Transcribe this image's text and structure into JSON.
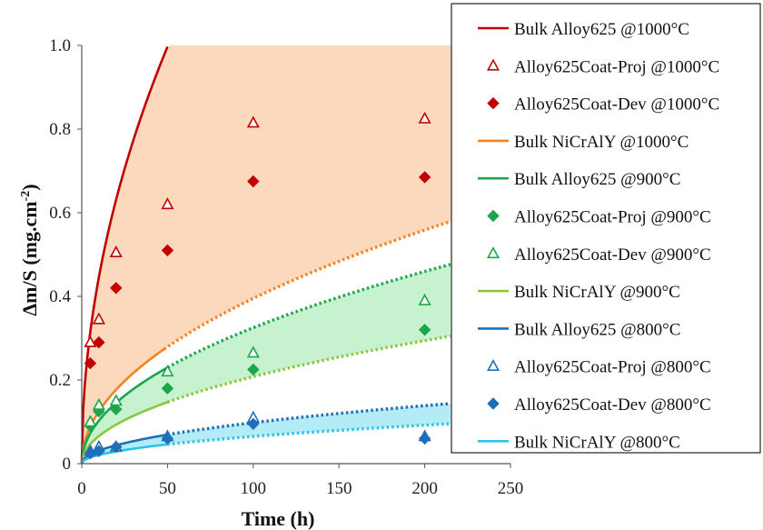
{
  "chart_data": {
    "type": "line",
    "xlabel": "Time (h)",
    "ylabel_main": "Δm/S (mg.cm",
    "ylabel_sup": "-2",
    "ylabel_end": ")",
    "xlim": [
      0,
      250
    ],
    "ylim": [
      0,
      1.0
    ],
    "xticks": [
      {
        "value": 0,
        "label": "0"
      },
      {
        "value": 50,
        "label": "50"
      },
      {
        "value": 100,
        "label": "100"
      },
      {
        "value": 150,
        "label": "150"
      },
      {
        "value": 200,
        "label": "200"
      },
      {
        "value": 250,
        "label": "250"
      }
    ],
    "yticks": [
      {
        "value": 0,
        "label": "0"
      },
      {
        "value": 0.2,
        "label": "0.2"
      },
      {
        "value": 0.4,
        "label": "0.4"
      },
      {
        "value": 0.6,
        "label": "0.6"
      },
      {
        "value": 0.8,
        "label": "0.8"
      },
      {
        "value": 1.0,
        "label": "1.0"
      }
    ],
    "grid": false,
    "legend_position": "right",
    "bands": [
      {
        "upper": "bulk-alloy625-1000",
        "lower": "bulk-nicraly-1000",
        "color": "#fcd9bc"
      },
      {
        "upper": "bulk-alloy625-900",
        "lower": "bulk-nicraly-900",
        "color": "#c6f2cf"
      },
      {
        "upper": "bulk-alloy625-800",
        "lower": "bulk-nicraly-800",
        "color": "#b3ecf6"
      }
    ],
    "series": [
      {
        "id": "bulk-alloy625-1000",
        "name": "Bulk Alloy625 @1000°C",
        "kind": "line",
        "color": "#c00000",
        "k": 0.141,
        "x_end": 50,
        "extrapolate_to": 0
      },
      {
        "id": "proj-1000",
        "name": "Alloy625Coat-Proj @1000°C",
        "kind": "marker",
        "marker": "triangle-open",
        "color": "#c00000",
        "x": [
          5,
          10,
          20,
          50,
          100,
          200
        ],
        "y": [
          0.29,
          0.345,
          0.505,
          0.62,
          0.815,
          0.825
        ]
      },
      {
        "id": "dev-1000",
        "name": "Alloy625Coat-Dev @1000°C",
        "kind": "marker",
        "marker": "diamond",
        "color": "#c00000",
        "x": [
          5,
          10,
          20,
          50,
          100,
          200
        ],
        "y": [
          0.24,
          0.29,
          0.42,
          0.51,
          0.675,
          0.685
        ]
      },
      {
        "id": "bulk-nicraly-1000",
        "name": "Bulk NiCrAlY @1000°C",
        "kind": "line",
        "color": "#f4821f",
        "k": 0.0395,
        "x_end": 48,
        "extrapolate_to": 215
      },
      {
        "id": "bulk-alloy625-900",
        "name": "Bulk Alloy625 @900°C",
        "kind": "line",
        "color": "#1aa64a",
        "k": 0.0325,
        "x_end": 50,
        "extrapolate_to": 215
      },
      {
        "id": "proj-900",
        "name": "Alloy625Coat-Proj @900°C",
        "kind": "marker",
        "marker": "diamond",
        "color": "#1aa64a",
        "x": [
          5,
          10,
          20,
          50,
          100,
          200
        ],
        "y": [
          0.09,
          0.125,
          0.13,
          0.18,
          0.225,
          0.32
        ]
      },
      {
        "id": "dev-900",
        "name": "Alloy625Coat-Dev @900°C",
        "kind": "marker",
        "marker": "triangle-open",
        "color": "#1aa64a",
        "x": [
          5,
          10,
          20,
          50,
          100,
          200
        ],
        "y": [
          0.1,
          0.14,
          0.15,
          0.22,
          0.265,
          0.39
        ]
      },
      {
        "id": "bulk-nicraly-900",
        "name": "Bulk NiCrAlY @900°C",
        "kind": "line",
        "color": "#8cc63f",
        "k": 0.0208,
        "x_end": 50,
        "extrapolate_to": 215
      },
      {
        "id": "bulk-alloy625-800",
        "name": "Bulk Alloy625 @800°C",
        "kind": "line",
        "color": "#1f6fb8",
        "k": 0.0098,
        "x_end": 50,
        "extrapolate_to": 215
      },
      {
        "id": "proj-800",
        "name": "Alloy625Coat-Proj @800°C",
        "kind": "marker",
        "marker": "triangle-open",
        "color": "#1f6fb8",
        "x": [
          5,
          10,
          20,
          50,
          100,
          200
        ],
        "y": [
          0.03,
          0.04,
          0.04,
          0.065,
          0.11,
          0.065
        ]
      },
      {
        "id": "dev-800",
        "name": "Alloy625Coat-Dev @800°C",
        "kind": "marker",
        "marker": "diamond",
        "color": "#1f6fb8",
        "x": [
          5,
          10,
          20,
          50,
          100,
          200
        ],
        "y": [
          0.025,
          0.03,
          0.04,
          0.06,
          0.095,
          0.06
        ]
      },
      {
        "id": "bulk-nicraly-800",
        "name": "Bulk NiCrAlY @800°C",
        "kind": "line",
        "color": "#29c4e8",
        "k": 0.0065,
        "x_end": 50,
        "extrapolate_to": 215
      }
    ]
  }
}
